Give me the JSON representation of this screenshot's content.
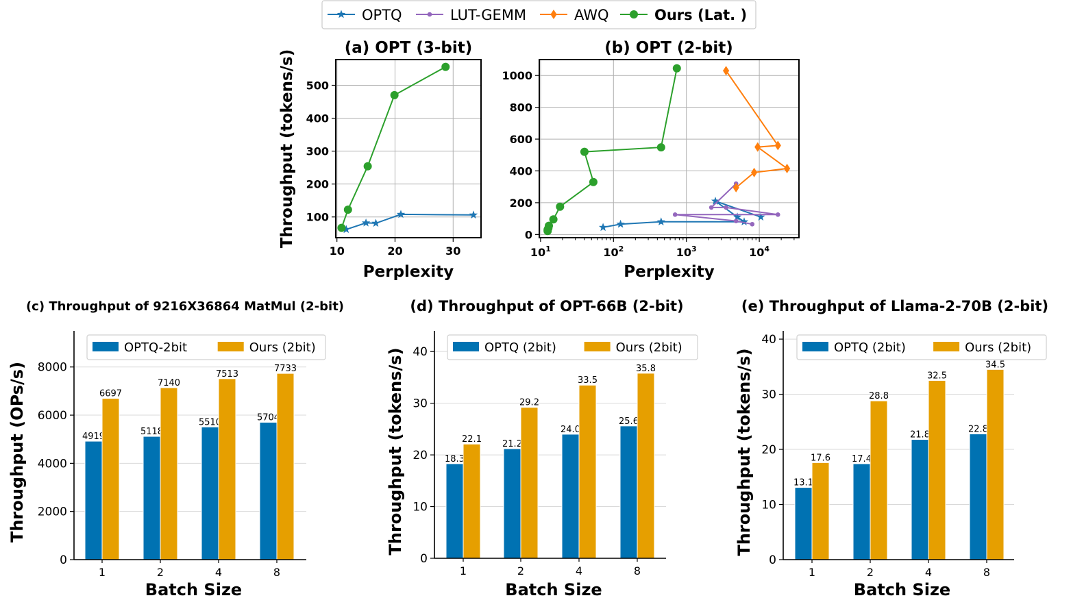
{
  "top_legend": {
    "entries": [
      {
        "label": "OPTQ",
        "marker": "star",
        "color": "#1f77b4"
      },
      {
        "label": "LUT-GEMM",
        "marker": "dot",
        "color": "#9467bd"
      },
      {
        "label": "AWQ",
        "marker": "diamond",
        "color": "#ff7f0e"
      },
      {
        "label": "Ours (Lat. )",
        "marker": "circle",
        "color": "#2ca02c",
        "bold": true
      }
    ]
  },
  "chart_data": [
    {
      "id": "a",
      "type": "line",
      "title": "(a) OPT (3-bit)",
      "xlabel": "Perplexity",
      "ylabel": "Throughput (tokens/s)",
      "xscale": "linear",
      "xlim": [
        9.8,
        34.8
      ],
      "ylim": [
        37,
        578
      ],
      "xticks": [
        10,
        20,
        30
      ],
      "yticks": [
        100,
        200,
        300,
        400,
        500
      ],
      "grid": true,
      "series": [
        {
          "name": "OPTQ",
          "marker": "star",
          "color": "#1f77b4",
          "x": [
            11.6,
            15.0,
            16.7,
            21.0,
            33.5
          ],
          "y": [
            62,
            82,
            81,
            108,
            106
          ]
        },
        {
          "name": "Ours (Lat. )",
          "marker": "circle",
          "color": "#2ca02c",
          "x": [
            10.8,
            11.9,
            15.3,
            19.9,
            28.7
          ],
          "y": [
            67,
            122,
            254,
            470,
            556
          ]
        }
      ]
    },
    {
      "id": "b",
      "type": "line",
      "title": "(b) OPT (2-bit)",
      "xlabel": "Perplexity",
      "ylabel": "",
      "xscale": "log",
      "xlim": [
        9.6,
        35000
      ],
      "ylim": [
        -20,
        1100
      ],
      "xticks": [
        10,
        100,
        1000,
        10000
      ],
      "xtick_labels": [
        [
          "10",
          "1"
        ],
        [
          "10",
          "2"
        ],
        [
          "10",
          "3"
        ],
        [
          "10",
          "4"
        ]
      ],
      "yticks": [
        0,
        200,
        400,
        600,
        800,
        1000
      ],
      "grid": true,
      "series": [
        {
          "name": "OPTQ",
          "marker": "star",
          "color": "#1f77b4",
          "x": [
            72,
            125,
            450,
            6200,
            5000,
            2500,
            10500
          ],
          "y": [
            45,
            65,
            80,
            80,
            110,
            210,
            110
          ]
        },
        {
          "name": "LUT-GEMM",
          "marker": "dot",
          "color": "#9467bd",
          "x": [
            8000,
            4800,
            700,
            18000,
            3500,
            2200,
            4800
          ],
          "y": [
            65,
            85,
            125,
            125,
            170,
            170,
            320
          ]
        },
        {
          "name": "AWQ",
          "marker": "diamond",
          "color": "#ff7f0e",
          "x": [
            3500,
            18000,
            9500,
            24000,
            8500,
            4800
          ],
          "y": [
            1030,
            560,
            550,
            415,
            390,
            295
          ]
        },
        {
          "name": "Ours (Lat. )",
          "marker": "circle",
          "color": "#2ca02c",
          "x": [
            740,
            450,
            40,
            53,
            18.5,
            15,
            13,
            12.5,
            12.5,
            12.8
          ],
          "y": [
            1045,
            548,
            520,
            330,
            175,
            95,
            55,
            30,
            22,
            40
          ]
        }
      ]
    },
    {
      "id": "c",
      "type": "bar",
      "title": "(c) Throughput of 9216X36864 MatMul (2-bit)",
      "xlabel": "Batch Size",
      "ylabel": "Throughput (OPs/s)",
      "categories": [
        "1",
        "2",
        "4",
        "8"
      ],
      "ylim": [
        0,
        9500
      ],
      "yticks": [
        0,
        2000,
        4000,
        6000,
        8000
      ],
      "legend": "top",
      "series": [
        {
          "name": "OPTQ-2bit",
          "color": "#0072b2",
          "values": [
            4919,
            5118,
            5510,
            5704
          ],
          "labels": [
            "4919",
            "5118",
            "5510",
            "5704"
          ]
        },
        {
          "name": "Ours (2bit)",
          "color": "#e69f00",
          "values": [
            6697,
            7140,
            7513,
            7733
          ],
          "labels": [
            "6697",
            "7140",
            "7513",
            "7733"
          ]
        }
      ]
    },
    {
      "id": "d",
      "type": "bar",
      "title": "(d) Throughput of OPT-66B (2-bit)",
      "xlabel": "Batch Size",
      "ylabel": "Throughput (tokens/s)",
      "categories": [
        "1",
        "2",
        "4",
        "8"
      ],
      "ylim": [
        0,
        44
      ],
      "yticks": [
        0,
        10,
        20,
        30,
        40
      ],
      "legend": "top",
      "series": [
        {
          "name": "OPTQ (2bit)",
          "color": "#0072b2",
          "values": [
            18.3,
            21.2,
            24.0,
            25.6
          ],
          "labels": [
            "18.3",
            "21.2",
            "24.0",
            "25.6"
          ]
        },
        {
          "name": "Ours (2bit)",
          "color": "#e69f00",
          "values": [
            22.1,
            29.2,
            33.5,
            35.8
          ],
          "labels": [
            "22.1",
            "29.2",
            "33.5",
            "35.8"
          ]
        }
      ]
    },
    {
      "id": "e",
      "type": "bar",
      "title": "(e) Throughput of Llama-2-70B (2-bit)",
      "xlabel": "Batch Size",
      "ylabel": "Throughput (tokens/s)",
      "categories": [
        "1",
        "2",
        "4",
        "8"
      ],
      "ylim": [
        0,
        41.5
      ],
      "yticks": [
        0,
        10,
        20,
        30,
        40
      ],
      "legend": "top",
      "series": [
        {
          "name": "OPTQ (2bit)",
          "color": "#0072b2",
          "values": [
            13.1,
            17.4,
            21.8,
            22.8
          ],
          "labels": [
            "13.1",
            "17.4",
            "21.8",
            "22.8"
          ]
        },
        {
          "name": "Ours (2bit)",
          "color": "#e69f00",
          "values": [
            17.6,
            28.8,
            32.5,
            34.5
          ],
          "labels": [
            "17.6",
            "28.8",
            "32.5",
            "34.5"
          ]
        }
      ]
    }
  ]
}
